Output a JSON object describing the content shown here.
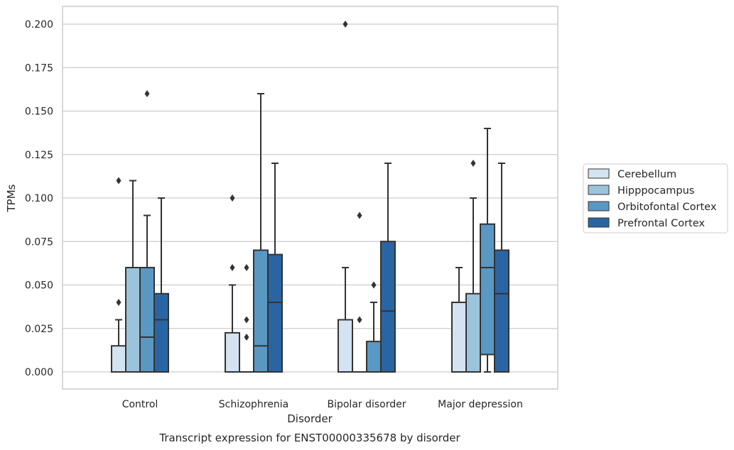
{
  "chart_data": {
    "type": "boxplot",
    "title": "Transcript expression for ENST00000335678 by disorder",
    "xlabel": "Disorder",
    "ylabel": "TPMs",
    "ylim": [
      -0.01,
      0.21
    ],
    "yticks": [
      0.0,
      0.025,
      0.05,
      0.075,
      0.1,
      0.125,
      0.15,
      0.175,
      0.2
    ],
    "ytick_labels": [
      "0.000",
      "0.025",
      "0.050",
      "0.075",
      "0.100",
      "0.125",
      "0.150",
      "0.175",
      "0.200"
    ],
    "grid": "horizontal",
    "legend_position": "right",
    "categories": [
      "Control",
      "Schizophrenia",
      "Bipolar disorder",
      "Major depression"
    ],
    "series": [
      {
        "name": "Cerebellum",
        "color": "#d4e3f2",
        "boxes": [
          {
            "whislo": 0.0,
            "q1": 0.0,
            "median": 0.0,
            "q3": 0.015,
            "whishi": 0.03,
            "fliers": [
              0.04,
              0.11
            ]
          },
          {
            "whislo": 0.0,
            "q1": 0.0,
            "median": 0.0,
            "q3": 0.0225,
            "whishi": 0.05,
            "fliers": [
              0.06,
              0.1
            ]
          },
          {
            "whislo": 0.0,
            "q1": 0.0,
            "median": 0.0,
            "q3": 0.03,
            "whishi": 0.06,
            "fliers": [
              0.2
            ]
          },
          {
            "whislo": 0.0,
            "q1": 0.0,
            "median": 0.0,
            "q3": 0.04,
            "whishi": 0.06,
            "fliers": []
          }
        ]
      },
      {
        "name": "Hipppocampus",
        "color": "#9cc3dc",
        "boxes": [
          {
            "whislo": 0.0,
            "q1": 0.0,
            "median": 0.0,
            "q3": 0.06,
            "whishi": 0.11,
            "fliers": []
          },
          {
            "whislo": 0.0,
            "q1": 0.0,
            "median": 0.0,
            "q3": 0.0,
            "whishi": 0.0,
            "fliers": [
              0.02,
              0.03,
              0.06
            ]
          },
          {
            "whislo": 0.0,
            "q1": 0.0,
            "median": 0.0,
            "q3": 0.0,
            "whishi": 0.0,
            "fliers": [
              0.03,
              0.09
            ]
          },
          {
            "whislo": 0.0,
            "q1": 0.0,
            "median": 0.0,
            "q3": 0.045,
            "whishi": 0.1,
            "fliers": [
              0.12
            ]
          }
        ]
      },
      {
        "name": "Orbitofontal Cortex",
        "color": "#5a98c4",
        "boxes": [
          {
            "whislo": 0.0,
            "q1": 0.0,
            "median": 0.02,
            "q3": 0.06,
            "whishi": 0.09,
            "fliers": [
              0.16
            ]
          },
          {
            "whislo": 0.0,
            "q1": 0.0,
            "median": 0.015,
            "q3": 0.07,
            "whishi": 0.16,
            "fliers": []
          },
          {
            "whislo": 0.0,
            "q1": 0.0,
            "median": 0.0,
            "q3": 0.0175,
            "whishi": 0.04,
            "fliers": [
              0.05
            ]
          },
          {
            "whislo": 0.0,
            "q1": 0.01,
            "median": 0.06,
            "q3": 0.085,
            "whishi": 0.14,
            "fliers": []
          }
        ]
      },
      {
        "name": "Prefrontal Cortex",
        "color": "#2a65a3",
        "boxes": [
          {
            "whislo": 0.0,
            "q1": 0.0,
            "median": 0.03,
            "q3": 0.045,
            "whishi": 0.1,
            "fliers": []
          },
          {
            "whislo": 0.0,
            "q1": 0.0,
            "median": 0.04,
            "q3": 0.0675,
            "whishi": 0.12,
            "fliers": []
          },
          {
            "whislo": 0.0,
            "q1": 0.0,
            "median": 0.035,
            "q3": 0.075,
            "whishi": 0.12,
            "fliers": []
          },
          {
            "whislo": 0.0,
            "q1": 0.0,
            "median": 0.045,
            "q3": 0.07,
            "whishi": 0.12,
            "fliers": []
          }
        ]
      }
    ]
  }
}
